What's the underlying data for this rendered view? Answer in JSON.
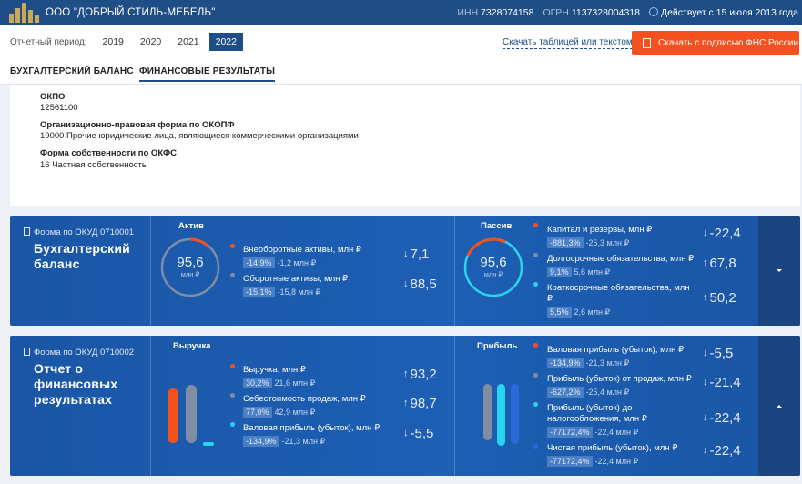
{
  "header": {
    "company": "ООО \"ДОБРЫЙ СТИЛЬ-МЕБЕЛЬ\"",
    "inn_label": "ИНН",
    "inn": "7328074158",
    "ogrn_label": "ОГРН",
    "ogrn": "1137328004318",
    "status": "Действует с 15 июля 2013 года"
  },
  "period": {
    "label": "Отчетный период:",
    "years": [
      "2019",
      "2020",
      "2021",
      "2022"
    ],
    "active_year": "2022",
    "download_table": "Скачать таблицей или текстом",
    "download_signed": "Скачать с подписью ФНС России"
  },
  "tabs": [
    "БУХГАЛТЕРСКИЙ БАЛАНС",
    "ФИНАНСОВЫЕ РЕЗУЛЬТАТЫ"
  ],
  "info": {
    "okpo_label": "ОКПО",
    "okpo": "12561100",
    "opf_label": "Организационно-правовая форма по ОКОПФ",
    "opf": "19000 Прочие юридические лица, являющиеся коммерческими организациями",
    "okfs_label": "Форма собственности по ОКФС",
    "okfs": "16 Частная собственность"
  },
  "balance": {
    "okud": "Форма по ОКУД 0710001",
    "title_line1": "Бухгалтерский",
    "title_line2": "баланс",
    "assets": {
      "label": "Актив",
      "total": "95,6",
      "unit": "млн ₽",
      "items": [
        {
          "name": "Внеоборотные активы, млн ₽",
          "pct": "-14,9%",
          "value": "-1,2 млн ₽",
          "delta": "7,1",
          "direction": "down"
        },
        {
          "name": "Оборотные активы, млн ₽",
          "pct": "-15,1%",
          "value": "-15,8 млн ₽",
          "delta": "88,5",
          "direction": "down"
        }
      ]
    },
    "liabilities": {
      "label": "Пассив",
      "total": "95,6",
      "unit": "млн ₽",
      "items": [
        {
          "name": "Капитал и резервы, млн ₽",
          "pct": "-881,3%",
          "value": "-25,3 млн ₽",
          "delta": "-22,4",
          "direction": "down"
        },
        {
          "name": "Долгосрочные обязательства, млн ₽",
          "pct": "9,1%",
          "value": "5,6 млн ₽",
          "delta": "67,8",
          "direction": "up"
        },
        {
          "name": "Краткосрочные обязательства, млн ₽",
          "pct": "5,5%",
          "value": "2,6 млн ₽",
          "delta": "50,2",
          "direction": "up"
        }
      ]
    }
  },
  "results": {
    "okud": "Форма по ОКУД 0710002",
    "title_line1": "Отчет о",
    "title_line2": "финансовых",
    "title_line3": "результатах",
    "revenue": {
      "label": "Выручка",
      "items": [
        {
          "name": "Выручка, млн ₽",
          "pct": "30,2%",
          "value": "21,6 млн ₽",
          "delta": "93,2",
          "direction": "up"
        },
        {
          "name": "Себестоимость продаж, млн ₽",
          "pct": "77,0%",
          "value": "42,9 млн ₽",
          "delta": "98,7",
          "direction": "up"
        },
        {
          "name": "Валовая прибыль (убыток), млн ₽",
          "pct": "-134,9%",
          "value": "-21,3 млн ₽",
          "delta": "-5,5",
          "direction": "down"
        }
      ]
    },
    "profit": {
      "label": "Прибыль",
      "items": [
        {
          "name": "Валовая прибыль (убыток), млн ₽",
          "pct": "-134,9%",
          "value": "-21,3 млн ₽",
          "delta": "-5,5",
          "direction": "down"
        },
        {
          "name": "Прибыль (убыток) от продаж, млн ₽",
          "pct": "-627,2%",
          "value": "-25,4 млн ₽",
          "delta": "-21,4",
          "direction": "down"
        },
        {
          "name_line1": "Прибыль (убыток) до",
          "name_line2": "налогообложения, млн ₽",
          "pct": "-77172,4%",
          "value": "-22,4 млн ₽",
          "delta": "-22,4",
          "direction": "down"
        },
        {
          "name": "Чистая прибыль (убыток), млн ₽",
          "pct": "-77172,4%",
          "value": "-22,4 млн ₽",
          "delta": "-22,4",
          "direction": "down"
        }
      ]
    }
  },
  "colors": {
    "primary": "#1f4e86",
    "accent": "#f4511e",
    "panel": "#1d5fb4",
    "bar_orange": "#f4511e",
    "bar_gray": "#7f8ea3",
    "bar_cyan": "#2ad4f0"
  }
}
